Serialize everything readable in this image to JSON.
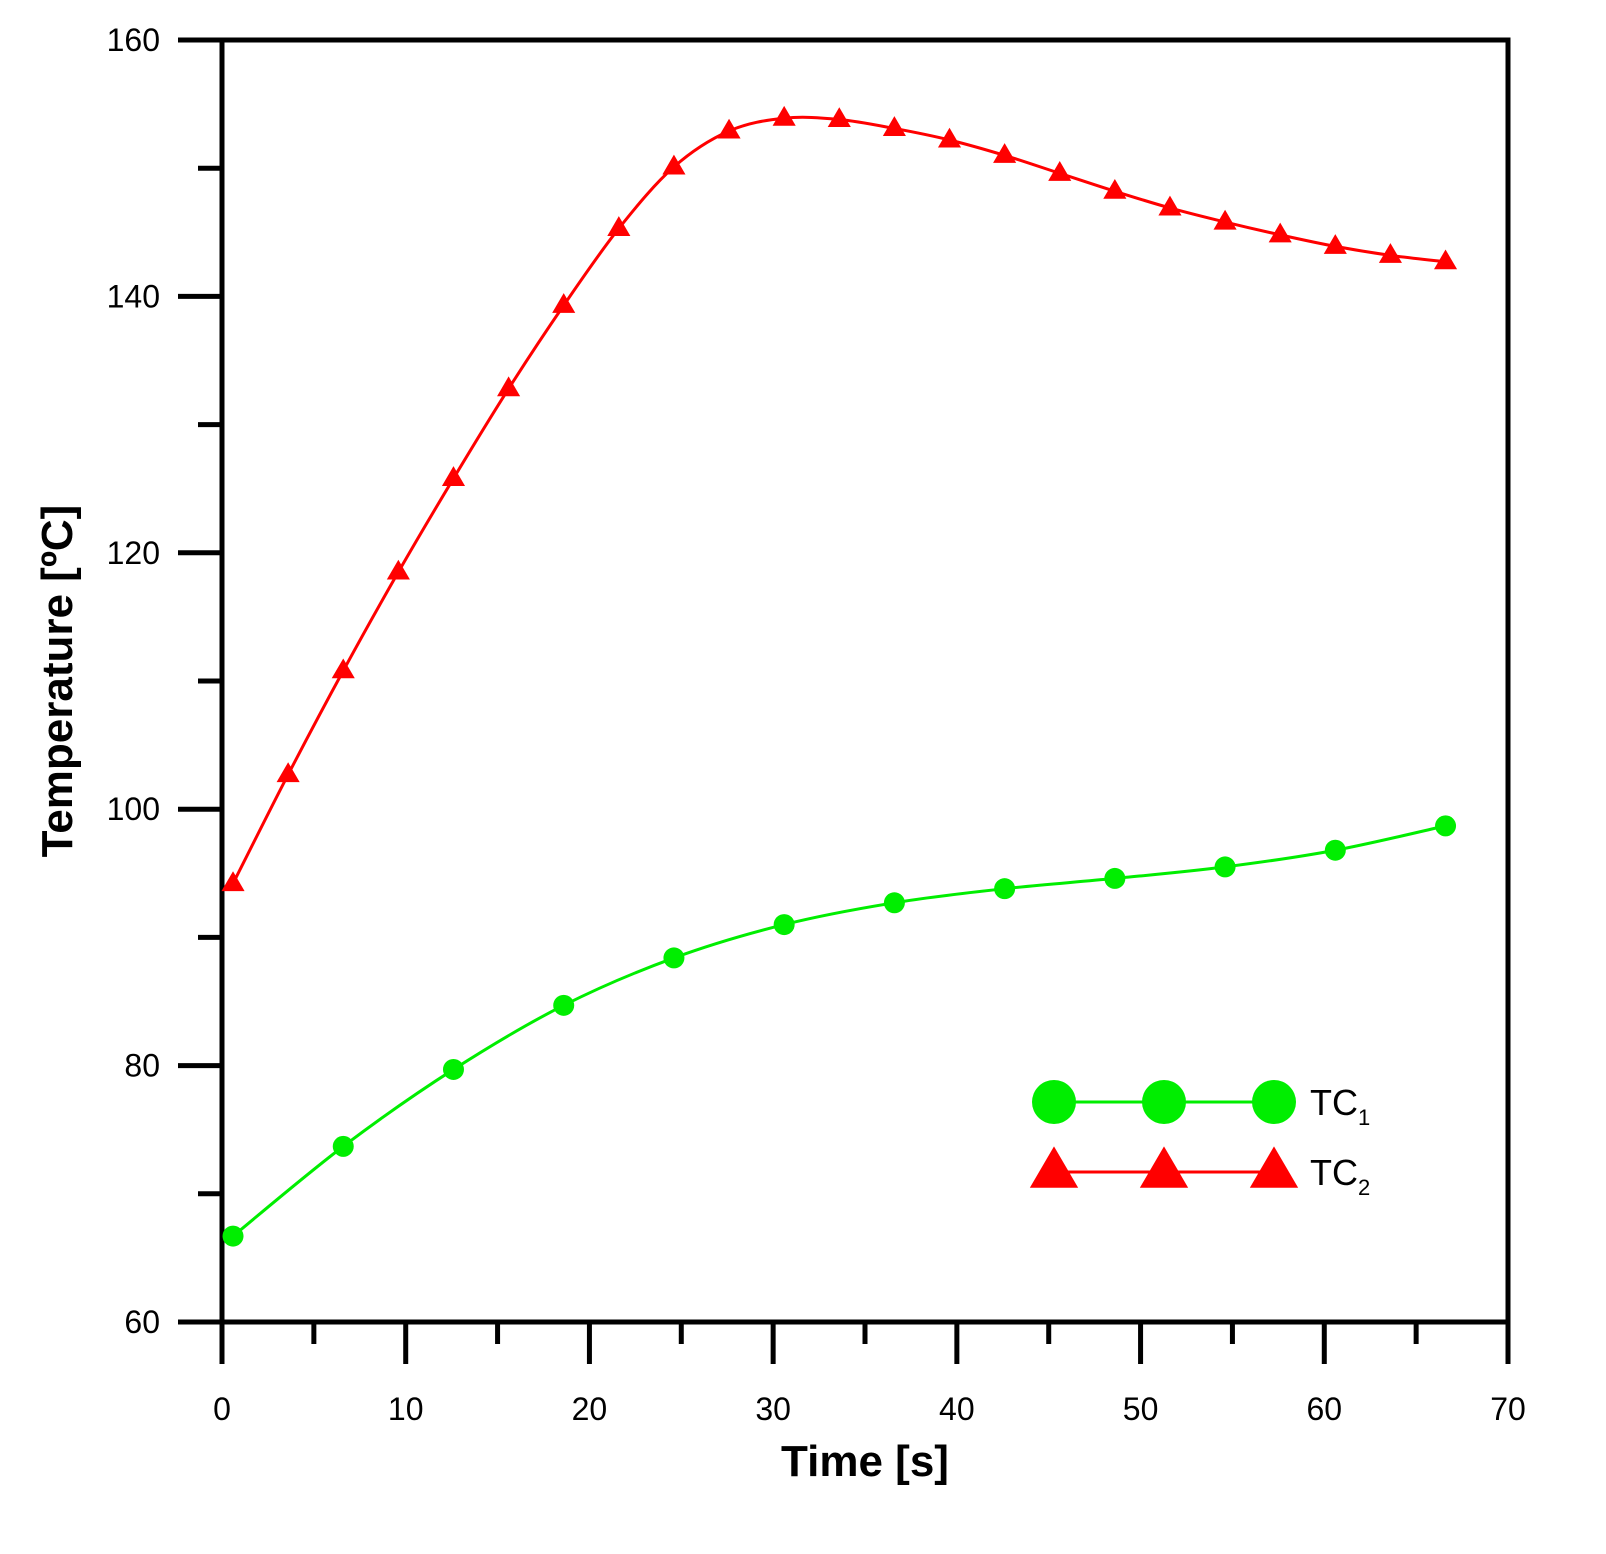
{
  "chart_data": {
    "type": "line",
    "xlabel": "Time [s]",
    "ylabel": "Temperature [ºC]",
    "xlim": [
      0,
      70
    ],
    "ylim": [
      60,
      160
    ],
    "x_ticks": [
      0,
      10,
      20,
      30,
      40,
      50,
      60,
      70
    ],
    "x_tick_labels": [
      "0",
      "10",
      "20",
      "30",
      "40",
      "50",
      "60",
      "70"
    ],
    "y_ticks": [
      60,
      80,
      100,
      120,
      140,
      160
    ],
    "y_tick_labels": [
      "60",
      "80",
      "100",
      "120",
      "140",
      "160"
    ],
    "x_minor_step": 5,
    "y_minor_step": 10,
    "grid": false,
    "legend_position": "bottom-right",
    "series": [
      {
        "name": "TC",
        "name_subscript": "1",
        "color": "#00ee00",
        "marker": "circle",
        "x": [
          0.6,
          6.6,
          12.6,
          18.6,
          24.6,
          30.6,
          36.6,
          42.6,
          48.6,
          54.6,
          60.6,
          66.6
        ],
        "y": [
          66.7,
          73.7,
          79.7,
          84.7,
          88.4,
          91.0,
          92.7,
          93.8,
          94.6,
          95.5,
          96.8,
          98.7
        ]
      },
      {
        "name": "TC",
        "name_subscript": "2",
        "color": "#ff0000",
        "marker": "triangle",
        "x": [
          0.6,
          3.6,
          6.6,
          9.6,
          12.6,
          15.6,
          18.6,
          21.6,
          24.6,
          27.6,
          30.6,
          33.6,
          36.6,
          39.6,
          42.6,
          45.6,
          48.6,
          51.6,
          54.6,
          57.6,
          60.6,
          63.6,
          66.6
        ],
        "y": [
          94.2,
          102.7,
          110.8,
          118.5,
          125.8,
          132.8,
          139.3,
          145.3,
          150.1,
          152.9,
          153.9,
          153.8,
          153.1,
          152.2,
          151.0,
          149.6,
          148.2,
          146.9,
          145.8,
          144.8,
          143.9,
          143.2,
          142.7
        ]
      }
    ]
  }
}
